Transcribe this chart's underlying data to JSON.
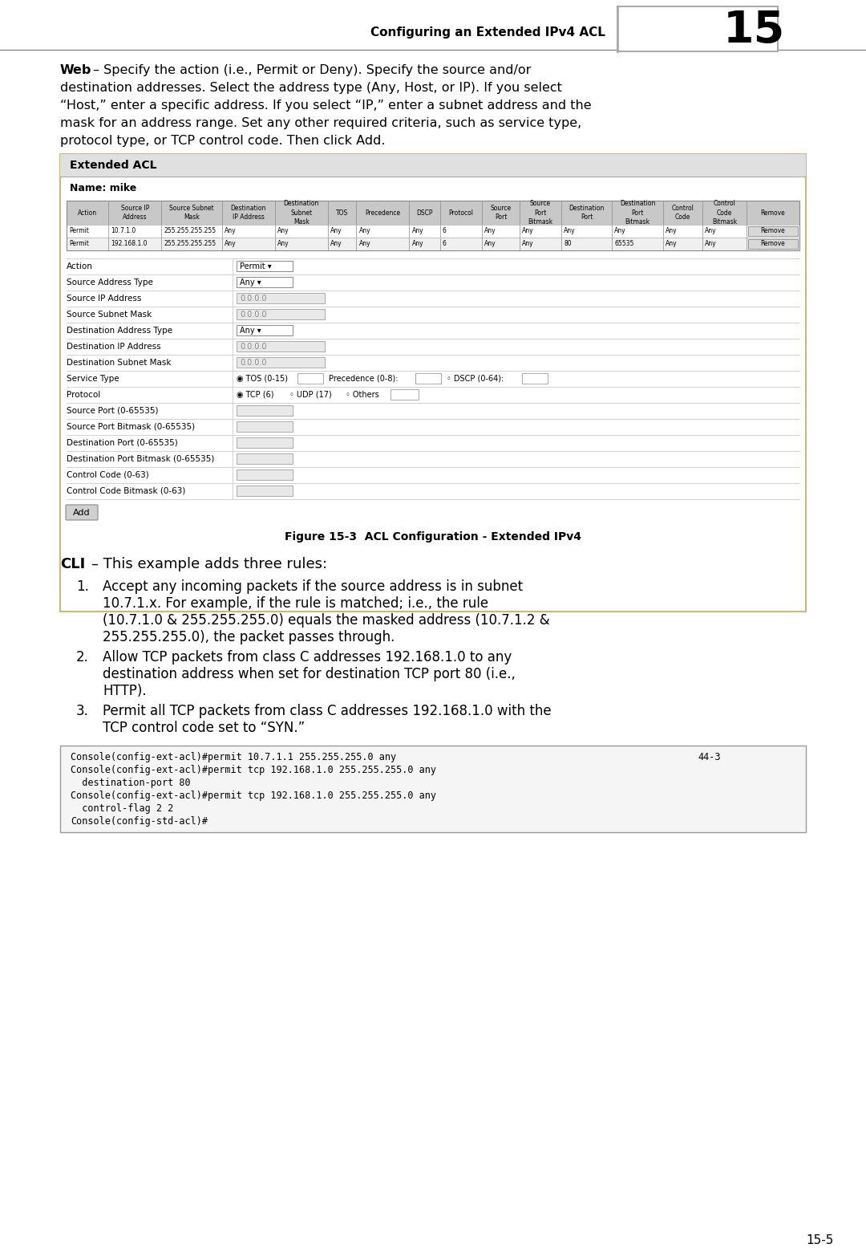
{
  "header_text": "Configuring an Extended IPv4 ACL",
  "chapter_num": "15",
  "page_num": "15-5",
  "bg_color": "#ffffff",
  "figure_caption": "Figure 15-3  ACL Configuration - Extended IPv4",
  "table_title": "Extended ACL",
  "table_name": "Name: mike",
  "table_headers_line1": [
    "Action",
    "Source IP",
    "Source Subnet",
    "Destination",
    "Destination",
    "TOS",
    "Precedence",
    "DSCP",
    "Protocol",
    "Source",
    "Source",
    "Destination",
    "Destination",
    "Control",
    "Control",
    "Remove"
  ],
  "table_headers_line2": [
    "",
    "Address",
    "Mask",
    "IP Address",
    "Subnet",
    "",
    "",
    "",
    "",
    "Port",
    "Port",
    "Port",
    "Port",
    "Code",
    "Code",
    ""
  ],
  "table_headers_line3": [
    "",
    "",
    "",
    "",
    "Mask",
    "",
    "",
    "",
    "",
    "",
    "Bitmask",
    "",
    "Bitmask",
    "",
    "Bitmask",
    ""
  ],
  "table_rows": [
    [
      "Permit",
      "10.7.1.0",
      "255.255.255.255",
      "Any",
      "Any",
      "Any",
      "Any",
      "Any",
      "6",
      "Any",
      "Any",
      "Any",
      "Any",
      "Any",
      "Any",
      "Remove"
    ],
    [
      "Permit",
      "192.168.1.0",
      "255.255.255.255",
      "Any",
      "Any",
      "Any",
      "Any",
      "Any",
      "6",
      "Any",
      "Any",
      "80",
      "65535",
      "Any",
      "Any",
      "Remove"
    ]
  ],
  "col_weights": [
    38,
    48,
    55,
    48,
    48,
    26,
    48,
    28,
    38,
    34,
    38,
    46,
    46,
    36,
    40,
    48
  ],
  "form_rows": [
    {
      "label": "Action",
      "type": "dropdown",
      "value": "Permit"
    },
    {
      "label": "Source Address Type",
      "type": "dropdown",
      "value": "Any"
    },
    {
      "label": "Source IP Address",
      "type": "input",
      "value": "0.0.0.0"
    },
    {
      "label": "Source Subnet Mask",
      "type": "input",
      "value": "0.0.0.0"
    },
    {
      "label": "Destination Address Type",
      "type": "dropdown",
      "value": "Any"
    },
    {
      "label": "Destination IP Address",
      "type": "input",
      "value": "0.0.0.0"
    },
    {
      "label": "Destination Subnet Mask",
      "type": "input",
      "value": "0.0.0.0"
    },
    {
      "label": "Service Type",
      "type": "service"
    },
    {
      "label": "Protocol",
      "type": "protocol"
    },
    {
      "label": "Source Port (0-65535)",
      "type": "input_small",
      "value": ""
    },
    {
      "label": "Source Port Bitmask (0-65535)",
      "type": "input_small",
      "value": ""
    },
    {
      "label": "Destination Port (0-65535)",
      "type": "input_small",
      "value": ""
    },
    {
      "label": "Destination Port Bitmask (0-65535)",
      "type": "input_small",
      "value": ""
    },
    {
      "label": "Control Code (0-63)",
      "type": "input_small",
      "value": ""
    },
    {
      "label": "Control Code Bitmask (0-63)",
      "type": "input_small",
      "value": ""
    }
  ],
  "cli_items": [
    "Accept any incoming packets if the source address is in subnet 10.7.1.x. For example, if the rule is matched; i.e., the rule (10.7.1.0 & 255.255.255.0) equals the masked address (10.7.1.2 & 255.255.255.0), the packet passes through.",
    "Allow TCP packets from class C addresses 192.168.1.0 to any destination address when set for destination TCP port 80 (i.e., HTTP).",
    "Permit all TCP packets from class C addresses 192.168.1.0 with the TCP control code set to “SYN.”"
  ],
  "code_lines": [
    [
      "Console(config-ext-acl)#permit 10.7.1.1 255.255.255.0 any",
      "44-3"
    ],
    [
      "Console(config-ext-acl)#permit tcp 192.168.1.0 255.255.255.0 any",
      ""
    ],
    [
      "  destination-port 80",
      ""
    ],
    [
      "Console(config-ext-acl)#permit tcp 192.168.1.0 255.255.255.0 any",
      ""
    ],
    [
      "  control-flag 2 2",
      ""
    ],
    [
      "Console(config-std-acl)#",
      ""
    ]
  ]
}
